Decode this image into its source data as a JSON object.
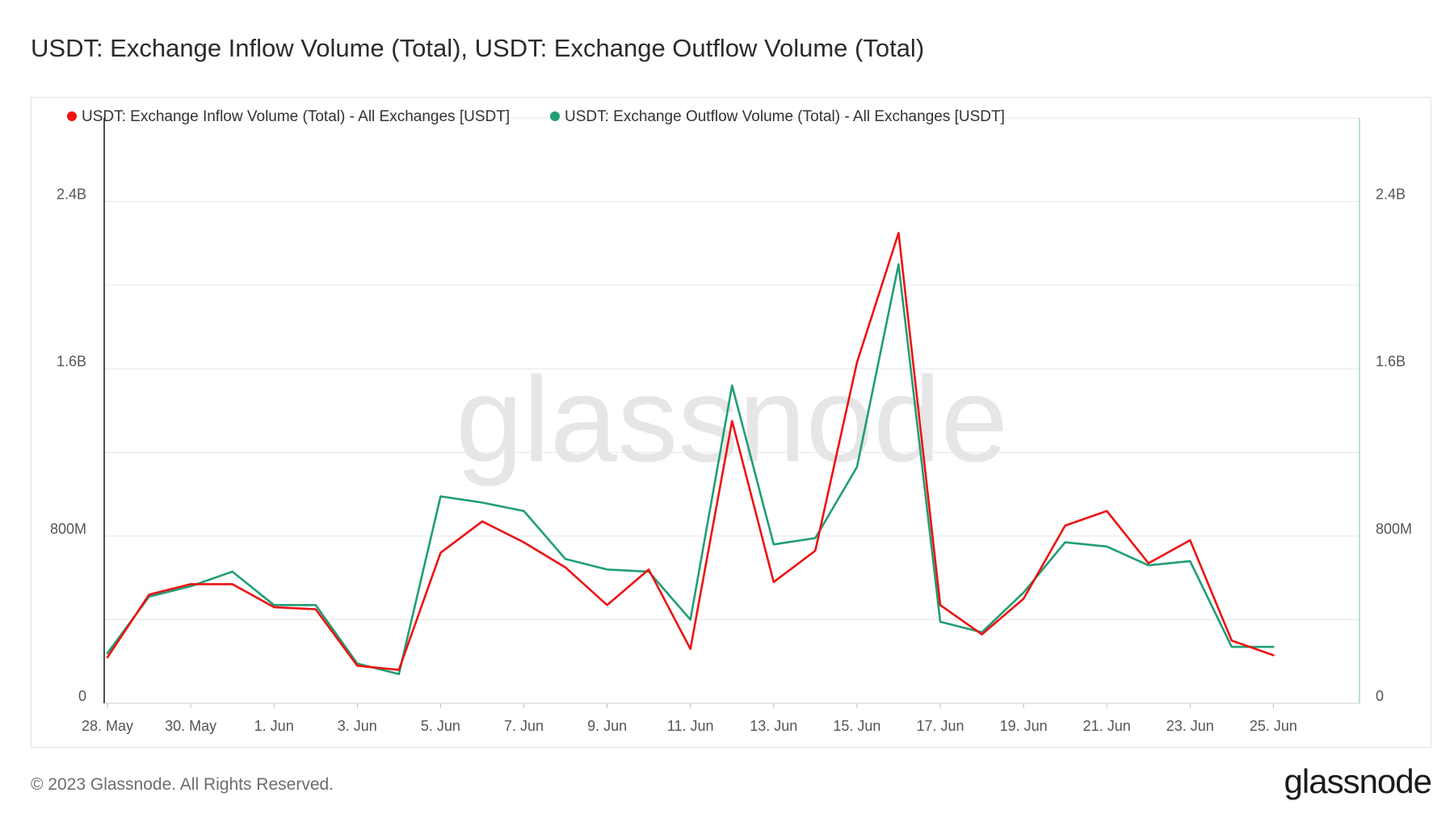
{
  "header": {
    "title": "USDT: Exchange Inflow Volume (Total), USDT: Exchange Outflow Volume (Total)"
  },
  "footer": {
    "copyright": "© 2023 Glassnode. All Rights Reserved.",
    "logo_text": "glassnode"
  },
  "watermark": "glassnode",
  "colors": {
    "inflow": "#ee1111",
    "outflow": "#1f9e74",
    "grid": "#e6e6e6",
    "left_axis": "#111111",
    "right_axis": "#9fd8c8"
  },
  "chart_data": {
    "type": "line",
    "x": [
      "28 May",
      "29 May",
      "30 May",
      "31 May",
      "1 Jun",
      "2 Jun",
      "3 Jun",
      "4 Jun",
      "5 Jun",
      "6 Jun",
      "7 Jun",
      "8 Jun",
      "9 Jun",
      "10 Jun",
      "11 Jun",
      "12 Jun",
      "13 Jun",
      "14 Jun",
      "15 Jun",
      "16 Jun",
      "17 Jun",
      "18 Jun",
      "19 Jun",
      "20 Jun",
      "21 Jun",
      "22 Jun",
      "23 Jun",
      "24 Jun",
      "25 Jun"
    ],
    "x_tick_labels": [
      "28. May",
      "30. May",
      "1. Jun",
      "3. Jun",
      "5. Jun",
      "7. Jun",
      "9. Jun",
      "11. Jun",
      "13. Jun",
      "15. Jun",
      "17. Jun",
      "19. Jun",
      "21. Jun",
      "23. Jun",
      "25. Jun"
    ],
    "series": [
      {
        "name": "USDT: Exchange Inflow Volume (Total) - All Exchanges [USDT]",
        "axis": "left",
        "values": [
          220000000,
          520000000,
          570000000,
          570000000,
          460000000,
          450000000,
          180000000,
          160000000,
          720000000,
          870000000,
          770000000,
          650000000,
          470000000,
          640000000,
          260000000,
          1350000000,
          580000000,
          730000000,
          1630000000,
          2250000000,
          470000000,
          330000000,
          500000000,
          850000000,
          920000000,
          670000000,
          780000000,
          300000000,
          230000000
        ]
      },
      {
        "name": "USDT: Exchange Outflow Volume (Total) - All Exchanges [USDT]",
        "axis": "right",
        "values": [
          240000000,
          510000000,
          560000000,
          630000000,
          470000000,
          470000000,
          190000000,
          140000000,
          990000000,
          960000000,
          920000000,
          690000000,
          640000000,
          630000000,
          400000000,
          1520000000,
          760000000,
          790000000,
          1130000000,
          2100000000,
          390000000,
          340000000,
          530000000,
          770000000,
          750000000,
          660000000,
          680000000,
          270000000,
          270000000
        ]
      }
    ],
    "y_left": {
      "ticks": [
        0,
        800000000,
        1600000000,
        2400000000
      ],
      "tick_labels": [
        "0",
        "800M",
        "1.6B",
        "2.4B"
      ],
      "range": [
        0,
        2800000000
      ]
    },
    "y_right": {
      "ticks": [
        0,
        800000000,
        1600000000,
        2400000000
      ],
      "tick_labels": [
        "0",
        "800M",
        "1.6B",
        "2.4B"
      ],
      "range": [
        0,
        2800000000
      ]
    },
    "grid": true,
    "legend_position": "top-left"
  }
}
